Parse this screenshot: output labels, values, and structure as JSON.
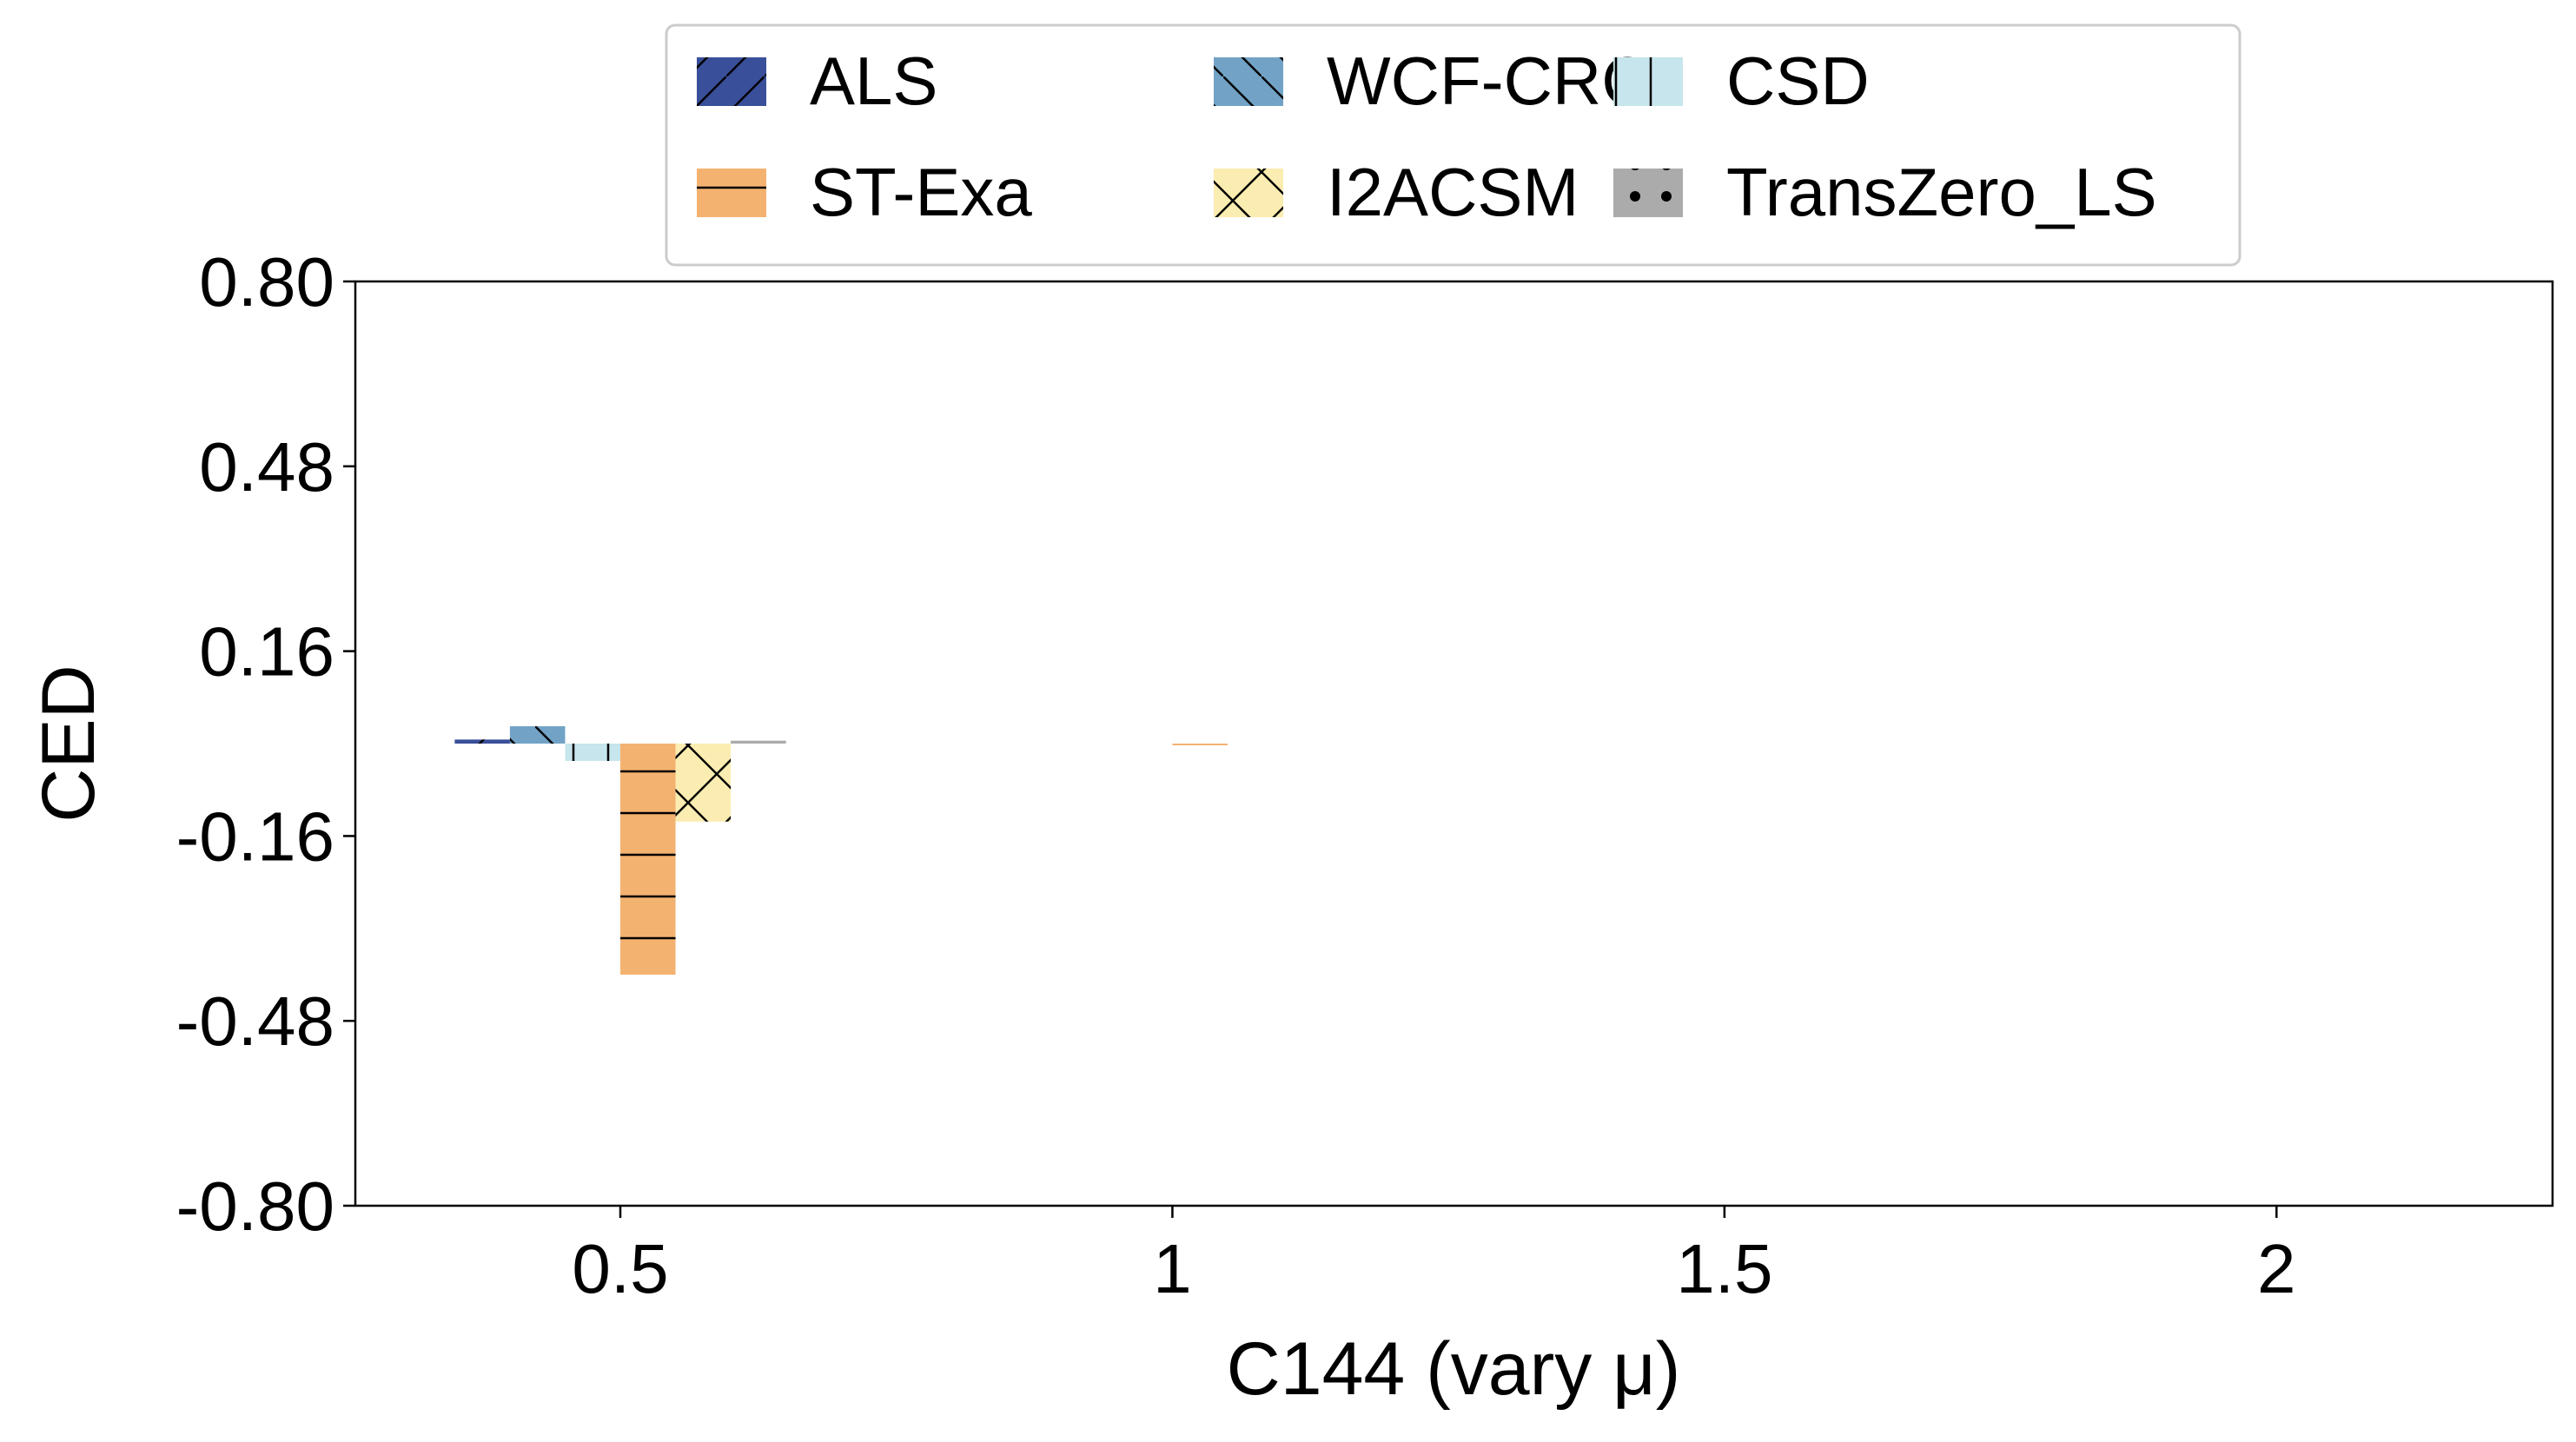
{
  "chart_data": {
    "type": "bar",
    "xlabel": "C144 (vary μ)",
    "ylabel": "CED",
    "x_ticks": [
      "0.5",
      "1",
      "1.5",
      "2"
    ],
    "x_tick_values": [
      0.5,
      1,
      1.5,
      2
    ],
    "xlim": [
      0.26,
      2.25
    ],
    "y_ticks": [
      "0.80",
      "0.48",
      "0.16",
      "-0.16",
      "-0.48",
      "-0.80"
    ],
    "y_tick_values": [
      0.8,
      0.48,
      0.16,
      -0.16,
      -0.48,
      -0.8
    ],
    "ylim": [
      -0.8,
      0.8
    ],
    "grid": false,
    "legend_position": "top-center",
    "legend_columns": 3,
    "bar_width": 0.05,
    "x": [
      0.5,
      1.0,
      1.5,
      2.0
    ],
    "series": [
      {
        "name": "ALS",
        "color": "#3a4f9a",
        "hatch": "/",
        "values": [
          0.007,
          0.0,
          0.0,
          0.0
        ]
      },
      {
        "name": "WCF-CRC",
        "color": "#72a3c6",
        "hatch": "\\",
        "values": [
          0.03,
          0.0,
          0.0,
          0.0
        ]
      },
      {
        "name": "CSD",
        "color": "#c7e5ec",
        "hatch": "|",
        "values": [
          -0.03,
          0.0,
          0.0,
          0.0
        ]
      },
      {
        "name": "ST-Exa",
        "color": "#f4b270",
        "hatch": "-",
        "values": [
          -0.4,
          -0.003,
          0.0,
          0.0
        ]
      },
      {
        "name": "I2ACSM",
        "color": "#fbedb1",
        "hatch": "x",
        "values": [
          -0.135,
          0.0,
          0.0,
          0.0
        ]
      },
      {
        "name": "TransZero_LS",
        "color": "#ababab",
        "hatch": ".",
        "values": [
          0.005,
          0.0,
          0.0,
          0.0
        ]
      }
    ]
  }
}
